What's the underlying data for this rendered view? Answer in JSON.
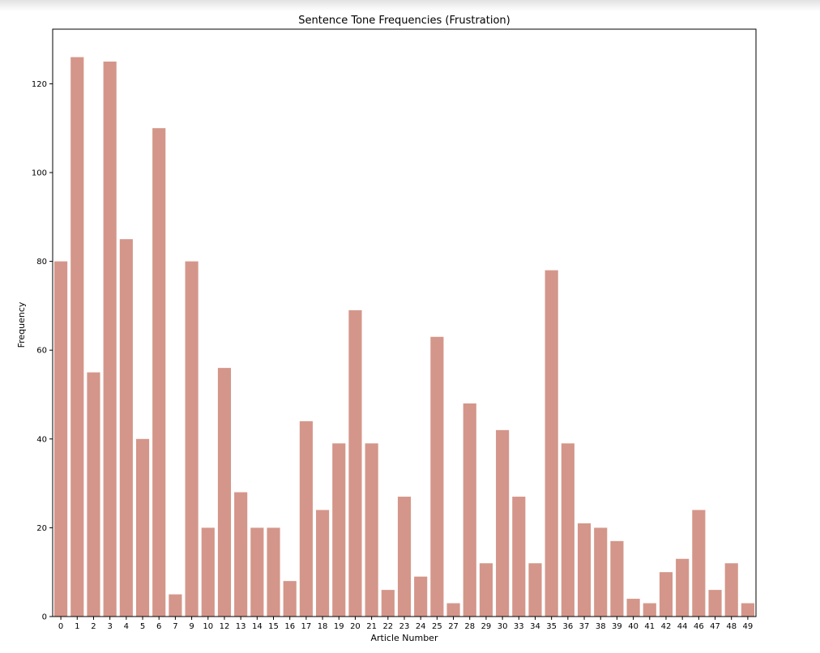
{
  "chart_data": {
    "type": "bar",
    "title": "Sentence Tone Frequencies (Frustration)",
    "xlabel": "Article Number",
    "ylabel": "Frequency",
    "categories": [
      "0",
      "1",
      "2",
      "3",
      "4",
      "5",
      "6",
      "7",
      "9",
      "10",
      "12",
      "13",
      "14",
      "15",
      "16",
      "17",
      "18",
      "19",
      "20",
      "21",
      "22",
      "23",
      "24",
      "25",
      "27",
      "28",
      "29",
      "30",
      "33",
      "34",
      "35",
      "36",
      "37",
      "38",
      "39",
      "40",
      "41",
      "42",
      "44",
      "46",
      "47",
      "48",
      "49"
    ],
    "values": [
      80,
      126,
      55,
      125,
      85,
      40,
      110,
      5,
      80,
      20,
      56,
      28,
      20,
      20,
      8,
      44,
      24,
      39,
      69,
      39,
      6,
      27,
      9,
      63,
      3,
      48,
      12,
      42,
      27,
      12,
      78,
      39,
      21,
      20,
      17,
      4,
      3,
      10,
      13,
      24,
      6,
      12,
      3
    ],
    "yticks": [
      0,
      20,
      40,
      60,
      80,
      100,
      120
    ],
    "ylim": [
      0,
      132.3
    ],
    "grid": false,
    "bar_color": "#d4968a"
  }
}
